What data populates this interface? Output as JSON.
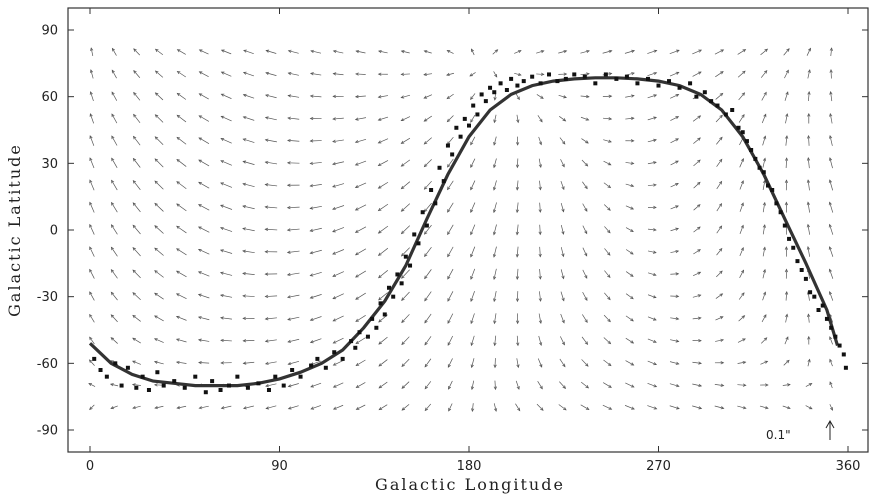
{
  "chart_data": {
    "type": "scatter",
    "xlabel": "Galactic Longitude",
    "ylabel": "Galactic Latitude",
    "xlim": [
      -6,
      366
    ],
    "ylim": [
      -100,
      100
    ],
    "xticks": [
      0,
      90,
      180,
      270,
      360
    ],
    "yticks": [
      90,
      60,
      30,
      0,
      -30,
      -60,
      -90
    ],
    "xtick_labels": [
      "0",
      "90",
      "180",
      "270",
      "360"
    ],
    "ytick_labels": [
      "90",
      "60",
      "30",
      "0",
      "-30",
      "-60",
      "-90"
    ],
    "grid": false,
    "legend": "none",
    "reference_vector_label": "0.1\"",
    "series": [
      {
        "kind": "curve",
        "x": [
          0,
          10,
          20,
          30,
          40,
          50,
          60,
          70,
          80,
          90,
          100,
          110,
          120,
          130,
          140,
          150,
          160,
          170,
          180,
          190,
          200,
          210,
          220,
          230,
          240,
          250,
          260,
          270,
          280,
          290,
          300,
          310,
          320,
          330,
          340,
          350,
          355
        ],
        "y": [
          -51,
          -60,
          -65,
          -68,
          -69,
          -70,
          -70,
          -70,
          -69,
          -67,
          -64,
          -60,
          -54,
          -44,
          -32,
          -16,
          5,
          25,
          42,
          54,
          61,
          65,
          67,
          68,
          68.5,
          68.5,
          68,
          67,
          65,
          61,
          54,
          42,
          25,
          5,
          -15,
          -36,
          -52
        ]
      },
      {
        "kind": "points",
        "x": [
          2,
          5,
          8,
          12,
          15,
          18,
          22,
          25,
          28,
          32,
          35,
          40,
          45,
          50,
          55,
          58,
          62,
          66,
          70,
          75,
          80,
          85,
          88,
          92,
          96,
          100,
          105,
          108,
          112,
          116,
          120,
          124,
          126,
          128,
          132,
          134,
          136,
          138,
          140,
          142,
          144,
          146,
          148,
          150,
          152,
          154,
          156,
          158,
          160,
          162,
          164,
          166,
          168,
          170,
          172,
          174,
          176,
          178,
          180,
          182,
          184,
          186,
          188,
          190,
          192,
          195,
          198,
          200,
          203,
          206,
          210,
          214,
          218,
          222,
          226,
          230,
          235,
          240,
          245,
          250,
          255,
          260,
          265,
          270,
          275,
          280,
          285,
          288,
          292,
          295,
          298,
          302,
          305,
          308,
          310,
          312,
          314,
          316,
          318,
          320,
          322,
          324,
          326,
          328,
          330,
          332,
          334,
          336,
          338,
          340,
          342,
          344,
          346,
          348,
          350,
          352,
          354,
          356,
          358,
          359
        ],
        "y": [
          -58,
          -63,
          -66,
          -60,
          -70,
          -62,
          -71,
          -66,
          -72,
          -64,
          -70,
          -68,
          -71,
          -66,
          -73,
          -68,
          -72,
          -70,
          -66,
          -71,
          -69,
          -72,
          -66,
          -70,
          -63,
          -66,
          -61,
          -58,
          -62,
          -55,
          -58,
          -50,
          -53,
          -46,
          -48,
          -40,
          -44,
          -33,
          -38,
          -26,
          -30,
          -20,
          -24,
          -12,
          -16,
          -2,
          -6,
          8,
          2,
          18,
          12,
          28,
          22,
          38,
          34,
          46,
          42,
          50,
          47,
          56,
          52,
          61,
          58,
          64,
          62,
          66,
          63,
          68,
          65,
          67,
          69,
          66,
          70,
          67,
          68,
          70,
          69,
          66,
          70,
          68,
          69,
          66,
          68,
          65,
          67,
          64,
          66,
          60,
          62,
          58,
          56,
          52,
          54,
          46,
          44,
          40,
          36,
          32,
          28,
          26,
          20,
          18,
          12,
          8,
          2,
          -4,
          -8,
          -14,
          -18,
          -22,
          -28,
          -30,
          -36,
          -34,
          -40,
          -44,
          -48,
          -52,
          -56,
          -62
        ]
      }
    ]
  }
}
